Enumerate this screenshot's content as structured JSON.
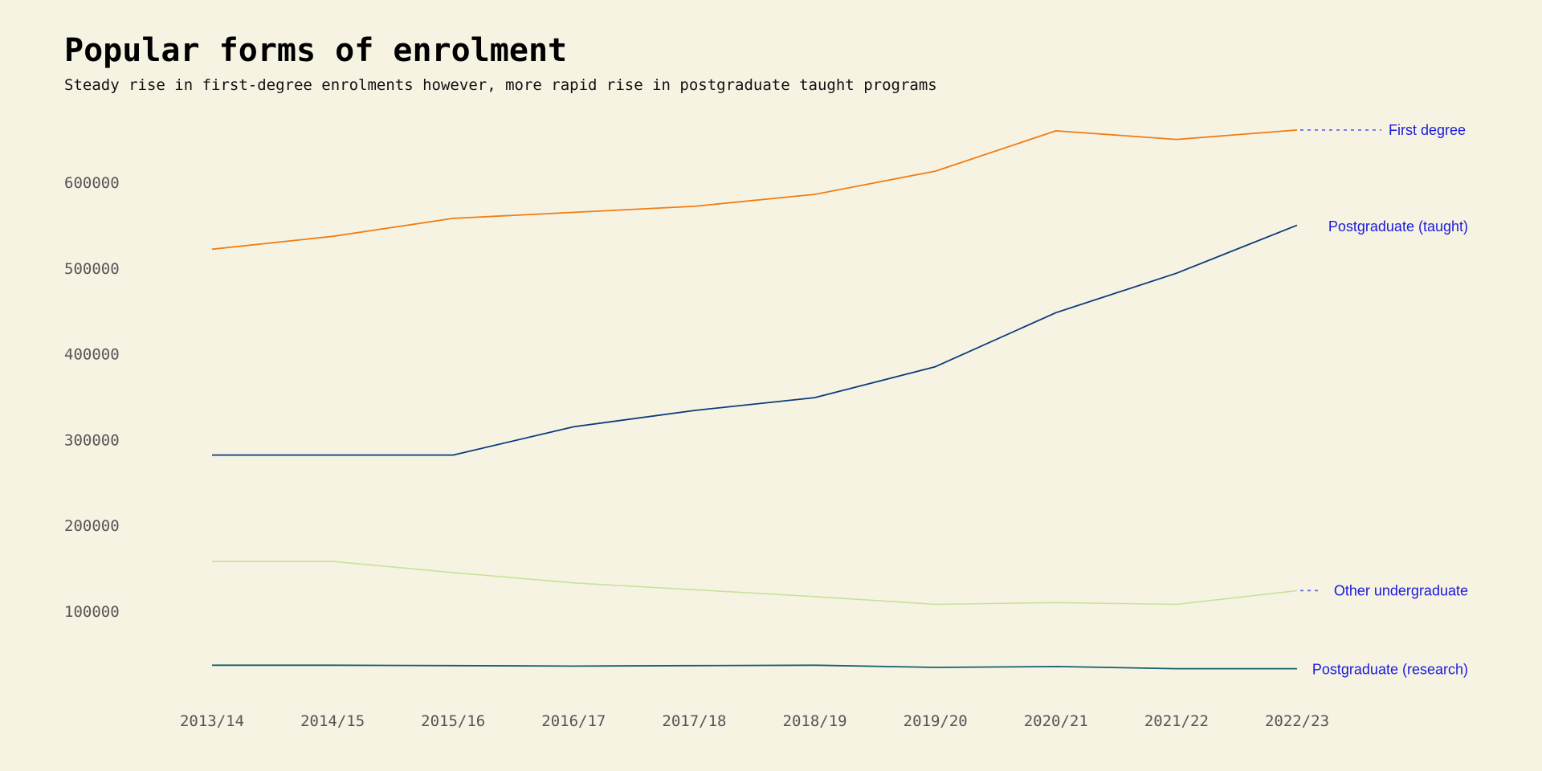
{
  "chart_data": {
    "type": "line",
    "title": "Popular forms of enrolment",
    "subtitle": "Steady rise in first-degree enrolments however, more rapid rise in postgraduate taught programs",
    "xlabel": "",
    "ylabel": "",
    "categories": [
      "2013/14",
      "2014/15",
      "2015/16",
      "2016/17",
      "2017/18",
      "2018/19",
      "2019/20",
      "2020/21",
      "2021/22",
      "2022/23"
    ],
    "yticks": [
      100000,
      200000,
      300000,
      400000,
      500000,
      600000
    ],
    "ylim": [
      20000,
      680000
    ],
    "grid": false,
    "legend": "direct labels at right end of lines",
    "label_color": "#1a1adb",
    "leader_color": "#6666ee",
    "series": [
      {
        "name": "First degree",
        "color": "#f07d14",
        "values": [
          522000,
          537000,
          558000,
          565000,
          572000,
          586000,
          613000,
          660000,
          650000,
          661000
        ]
      },
      {
        "name": "Postgraduate (taught)",
        "color": "#0d3b7a",
        "values": [
          282000,
          282000,
          282000,
          315000,
          334000,
          349000,
          385000,
          448000,
          494000,
          550000
        ]
      },
      {
        "name": "Other undergraduate",
        "color": "#c5e39a",
        "values": [
          158000,
          158000,
          145000,
          133000,
          125000,
          117000,
          108000,
          110000,
          108000,
          124000
        ]
      },
      {
        "name": "Postgraduate (research)",
        "color": "#13616b",
        "values": [
          37000,
          37000,
          36500,
          36000,
          36500,
          37000,
          34500,
          35500,
          33000,
          33000
        ]
      }
    ]
  }
}
